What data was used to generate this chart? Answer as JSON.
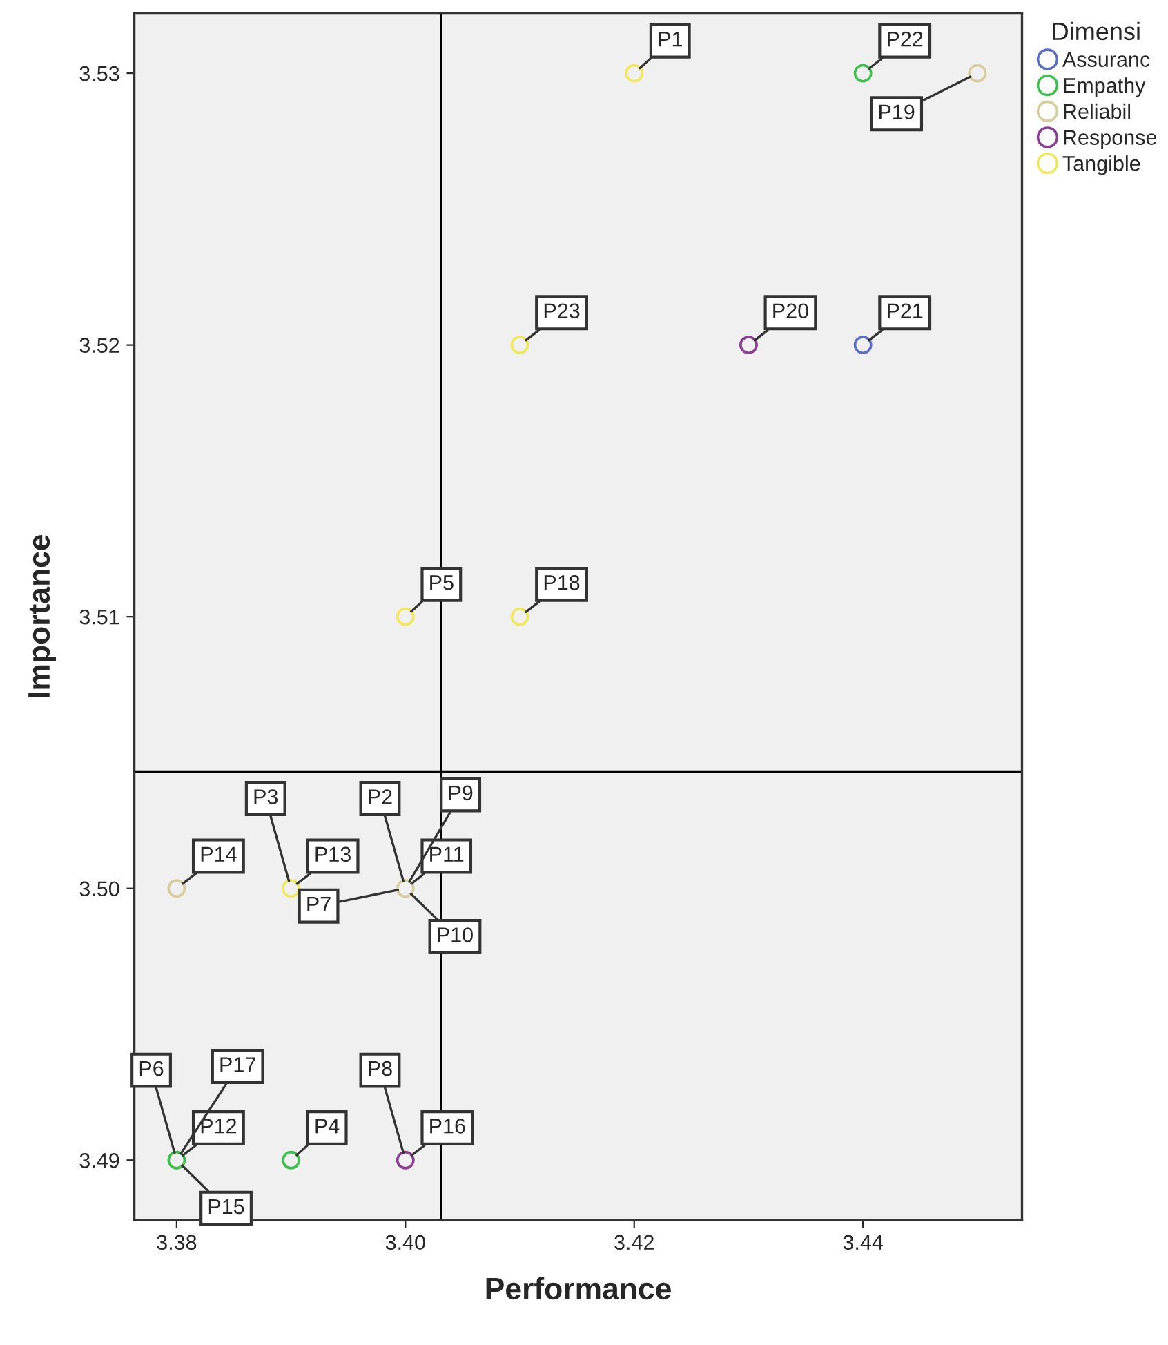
{
  "chart_data": {
    "type": "scatter",
    "xlabel": "Performance",
    "ylabel": "Importance",
    "legend_title": "Dimensi",
    "legend": "top right",
    "marker": "circle",
    "grid": false,
    "xlim": [
      3.3763,
      3.4539
    ],
    "ylim": [
      3.4878,
      3.5322
    ],
    "xticks": [
      3.38,
      {
        "value": 3.4,
        "label": "3.40"
      },
      3.42,
      3.44
    ],
    "yticks": [
      3.49,
      {
        "value": 3.5,
        "label": "3.50"
      },
      3.51,
      3.52,
      3.53
    ],
    "series": [
      {
        "name": "Assuranc",
        "color": "#5a6fc4",
        "x": [
          3.44
        ],
        "values": [
          3.52
        ]
      },
      {
        "name": "Empathy",
        "color": "#3cbf4c",
        "x": [
          3.44,
          3.38,
          3.39
        ],
        "values": [
          3.53,
          3.49,
          3.49
        ]
      },
      {
        "name": "Reliabil",
        "color": "#d6cd9a",
        "x": [
          3.45,
          3.38,
          3.4
        ],
        "values": [
          3.53,
          3.5,
          3.5
        ]
      },
      {
        "name": "Response",
        "color": "#8c3d94",
        "x": [
          3.43,
          3.4
        ],
        "values": [
          3.52,
          3.49
        ]
      },
      {
        "name": "Tangible",
        "color": "#efe85a",
        "x": [
          3.42,
          3.41,
          3.4,
          3.41,
          3.39
        ],
        "values": [
          3.53,
          3.52,
          3.51,
          3.51,
          3.5
        ]
      }
    ],
    "ref_lines": [
      {
        "axis": "x",
        "value": 3.4031,
        "color": "#000000"
      },
      {
        "axis": "y",
        "value": 3.5043,
        "color": "#000000"
      }
    ],
    "annotations": [
      {
        "text": "P1",
        "x": 3.42,
        "y": 3.53
      },
      {
        "text": "P22",
        "x": 3.44,
        "y": 3.53
      },
      {
        "text": "P19",
        "x": 3.45,
        "y": 3.53
      },
      {
        "text": "P23",
        "x": 3.41,
        "y": 3.52
      },
      {
        "text": "P20",
        "x": 3.43,
        "y": 3.52
      },
      {
        "text": "P21",
        "x": 3.44,
        "y": 3.52
      },
      {
        "text": "P5",
        "x": 3.4,
        "y": 3.51
      },
      {
        "text": "P18",
        "x": 3.41,
        "y": 3.51
      },
      {
        "text": "P14",
        "x": 3.38,
        "y": 3.5
      },
      {
        "text": "P13",
        "x": 3.39,
        "y": 3.5
      },
      {
        "text": "P3",
        "x": 3.39,
        "y": 3.5
      },
      {
        "text": "P11",
        "x": 3.4,
        "y": 3.5
      },
      {
        "text": "P2",
        "x": 3.4,
        "y": 3.5
      },
      {
        "text": "P10",
        "x": 3.4,
        "y": 3.5
      },
      {
        "text": "P9",
        "x": 3.4,
        "y": 3.5
      },
      {
        "text": "P7",
        "x": 3.4,
        "y": 3.5
      },
      {
        "text": "P12",
        "x": 3.38,
        "y": 3.49
      },
      {
        "text": "P6",
        "x": 3.38,
        "y": 3.49
      },
      {
        "text": "P15",
        "x": 3.38,
        "y": 3.49
      },
      {
        "text": "P17",
        "x": 3.38,
        "y": 3.49
      },
      {
        "text": "P4",
        "x": 3.39,
        "y": 3.49
      },
      {
        "text": "P16",
        "x": 3.4,
        "y": 3.49
      },
      {
        "text": "P8",
        "x": 3.4,
        "y": 3.49
      }
    ]
  }
}
